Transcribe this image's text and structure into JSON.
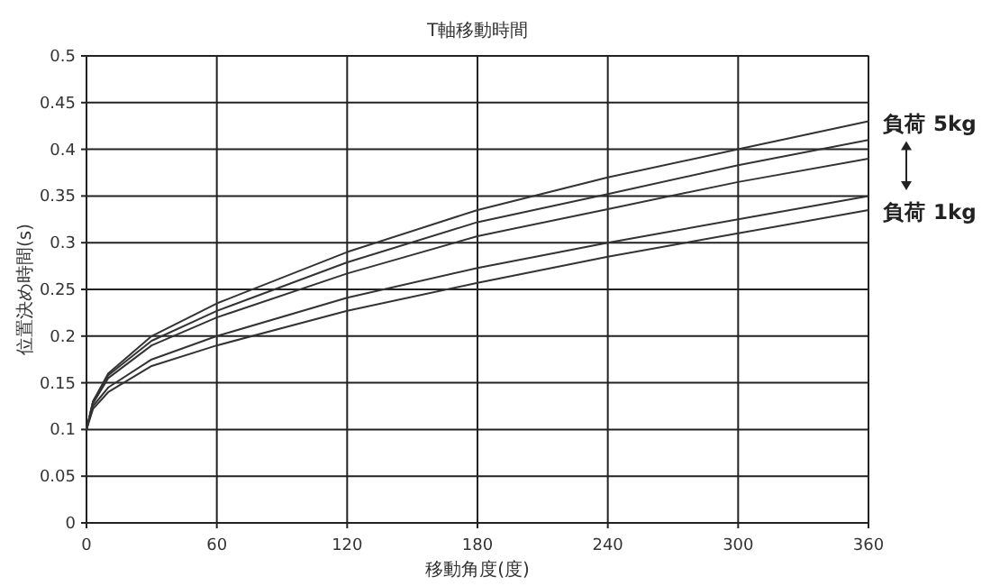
{
  "chart_data": {
    "type": "line",
    "title": "T軸移動時間",
    "xlabel": "移動角度(度)",
    "ylabel": "位置決め時間(s)",
    "xlim": [
      0,
      360
    ],
    "ylim": [
      0,
      0.5
    ],
    "xticks": [
      0,
      60,
      120,
      180,
      240,
      300,
      360
    ],
    "yticks": [
      0,
      0.05,
      0.1,
      0.15,
      0.2,
      0.25,
      0.3,
      0.35,
      0.4,
      0.45,
      0.5
    ],
    "grid": true,
    "series": [
      {
        "name": "負荷 5kg",
        "color": "#333333",
        "x": [
          0,
          3,
          10,
          30,
          60,
          120,
          180,
          240,
          300,
          360
        ],
        "values": [
          0.1,
          0.13,
          0.16,
          0.2,
          0.235,
          0.29,
          0.335,
          0.37,
          0.4,
          0.43
        ]
      },
      {
        "color": "#333333",
        "x": [
          0,
          3,
          10,
          30,
          60,
          120,
          180,
          240,
          300,
          360
        ],
        "values": [
          0.1,
          0.13,
          0.158,
          0.195,
          0.227,
          0.279,
          0.322,
          0.352,
          0.383,
          0.41
        ]
      },
      {
        "color": "#333333",
        "x": [
          0,
          3,
          10,
          30,
          60,
          120,
          180,
          240,
          300,
          360
        ],
        "values": [
          0.1,
          0.128,
          0.155,
          0.19,
          0.22,
          0.267,
          0.307,
          0.336,
          0.365,
          0.39
        ]
      },
      {
        "color": "#333333",
        "x": [
          0,
          3,
          10,
          30,
          60,
          120,
          180,
          240,
          300,
          360
        ],
        "values": [
          0.1,
          0.125,
          0.145,
          0.175,
          0.2,
          0.241,
          0.273,
          0.3,
          0.325,
          0.35
        ]
      },
      {
        "name": "負荷 1kg",
        "color": "#333333",
        "x": [
          0,
          3,
          10,
          30,
          60,
          120,
          180,
          240,
          300,
          360
        ],
        "values": [
          0.1,
          0.122,
          0.14,
          0.168,
          0.19,
          0.227,
          0.257,
          0.285,
          0.31,
          0.335
        ]
      }
    ]
  }
}
